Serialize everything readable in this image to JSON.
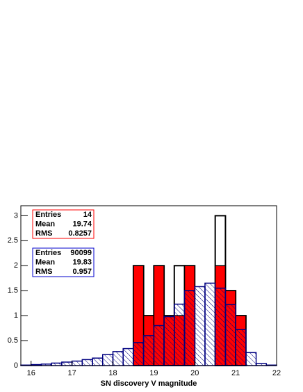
{
  "chart_data": {
    "type": "histogram",
    "xlabel": "SN discovery V magnitude",
    "bins": [
      15.75,
      16,
      16.25,
      16.5,
      16.75,
      17,
      17.25,
      17.5,
      17.75,
      18,
      18.25,
      18.5,
      18.75,
      19,
      19.25,
      19.5,
      19.75,
      20,
      20.25,
      20.5,
      20.75,
      21,
      21.25,
      21.5,
      21.75,
      22
    ],
    "series": [
      {
        "color": "#ffffff",
        "values": [
          0,
          0,
          0,
          0,
          0,
          0,
          0,
          0,
          0,
          0,
          0,
          2,
          1,
          2,
          1,
          2,
          2,
          0,
          0,
          3,
          1.5,
          1,
          0,
          0,
          0
        ]
      },
      {
        "color": "#ff0000",
        "values": [
          0,
          0,
          0,
          0,
          0,
          0,
          0,
          0,
          0,
          0,
          0,
          2,
          1,
          2,
          1,
          1,
          2,
          0,
          0,
          2,
          1.5,
          1,
          0,
          0,
          0
        ]
      },
      {
        "color": "#000080",
        "hatch": true,
        "values": [
          0.01,
          0.02,
          0.03,
          0.05,
          0.07,
          0.09,
          0.12,
          0.15,
          0.22,
          0.28,
          0.34,
          0.46,
          0.6,
          0.8,
          0.98,
          1.23,
          1.5,
          1.58,
          1.65,
          1.55,
          1.22,
          0.72,
          0.26,
          0.04,
          0.01
        ]
      }
    ],
    "xlim": [
      15.75,
      22
    ],
    "ylim": [
      0,
      3.2
    ],
    "xticks": [
      16,
      17,
      18,
      19,
      20,
      21,
      22
    ],
    "yticks": [
      0,
      0.5,
      1,
      1.5,
      2,
      2.5,
      3
    ],
    "stats": [
      {
        "color": "#ff0000",
        "rows": [
          [
            "Entries",
            "14"
          ],
          [
            "Mean",
            "19.74"
          ],
          [
            "RMS",
            "0.8257"
          ]
        ]
      },
      {
        "color": "#0000cc",
        "rows": [
          [
            "Entries",
            "90099"
          ],
          [
            "Mean",
            "19.83"
          ],
          [
            "RMS",
            "0.957"
          ]
        ]
      }
    ]
  }
}
